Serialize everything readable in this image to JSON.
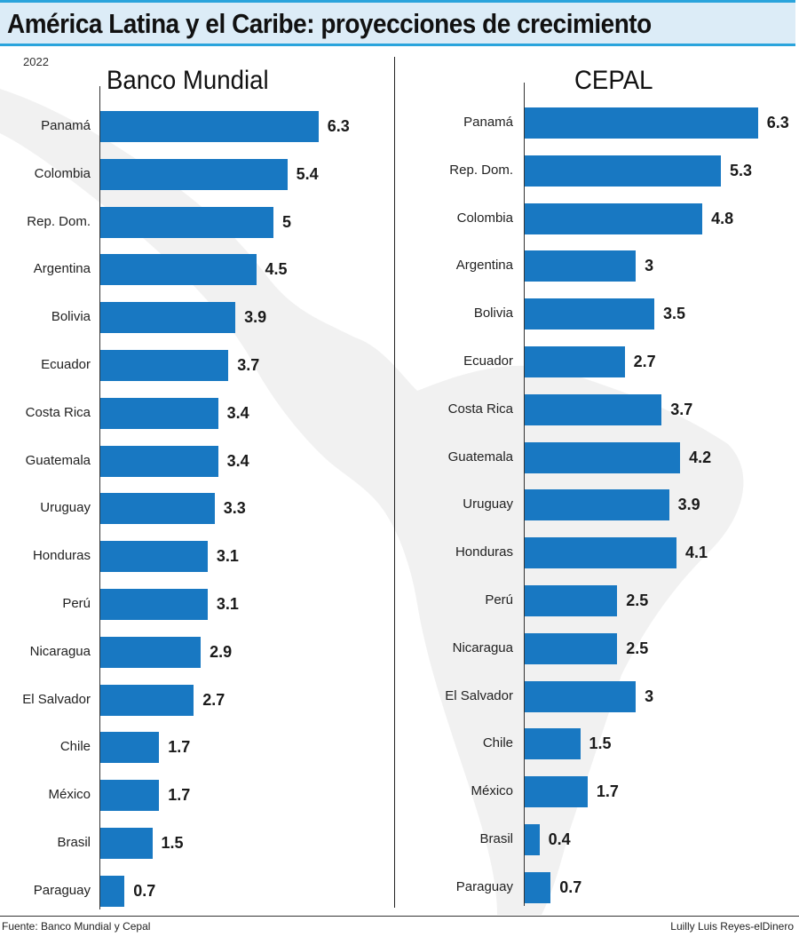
{
  "title": "América Latina y el Caribe: proyecciones de crecimiento",
  "year": "2022",
  "source": "Fuente: Banco Mundial y Cepal",
  "credit": "Luilly Luis Reyes-elDinero",
  "colors": {
    "bar": "#1878c2",
    "title_bg": "#dcecf7",
    "title_border": "#2aa4dc"
  },
  "chart_data": [
    {
      "type": "bar",
      "orientation": "horizontal",
      "title": "Banco Mundial",
      "categories": [
        "Panamá",
        "Colombia",
        "Rep. Dom.",
        "Argentina",
        "Bolivia",
        "Ecuador",
        "Costa Rica",
        "Guatemala",
        "Uruguay",
        "Honduras",
        "Perú",
        "Nicaragua",
        "El Salvador",
        "Chile",
        "México",
        "Brasil",
        "Paraguay"
      ],
      "values": [
        6.3,
        5.4,
        5,
        4.5,
        3.9,
        3.7,
        3.4,
        3.4,
        3.3,
        3.1,
        3.1,
        2.9,
        2.7,
        1.7,
        1.7,
        1.5,
        0.7
      ],
      "value_labels": [
        "6.3",
        "5.4",
        "5",
        "4.5",
        "3.9",
        "3.7",
        "3.4",
        "3.4",
        "3.3",
        "3.1",
        "3.1",
        "2.9",
        "2.7",
        "1.7",
        "1.7",
        "1.5",
        "0.7"
      ]
    },
    {
      "type": "bar",
      "orientation": "horizontal",
      "title": "CEPAL",
      "categories": [
        "Panamá",
        "Rep. Dom.",
        "Colombia",
        "Argentina",
        "Bolivia",
        "Ecuador",
        "Costa Rica",
        "Guatemala",
        "Uruguay",
        "Honduras",
        "Perú",
        "Nicaragua",
        "El Salvador",
        "Chile",
        "México",
        "Brasil",
        "Paraguay"
      ],
      "values": [
        6.3,
        5.3,
        4.8,
        3,
        3.5,
        2.7,
        3.7,
        4.2,
        3.9,
        4.1,
        2.5,
        2.5,
        3,
        1.5,
        1.7,
        0.4,
        0.7
      ],
      "value_labels": [
        "6.3",
        "5.3",
        "4.8",
        "3",
        "3.5",
        "2.7",
        "3.7",
        "4.2",
        "3.9",
        "4.1",
        "2.5",
        "2.5",
        "3",
        "1.5",
        "1.7",
        "0.4",
        "0.7"
      ]
    }
  ]
}
